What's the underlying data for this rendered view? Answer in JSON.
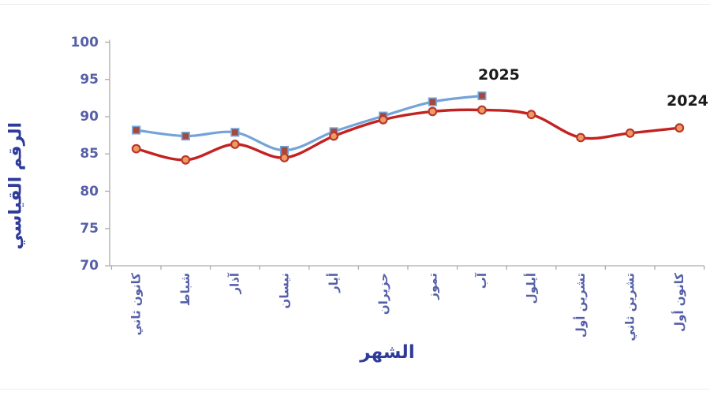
{
  "chart_data": {
    "type": "line",
    "title": "",
    "xlabel": "الشهر",
    "ylabel": "الرقم القياسي",
    "ylim": [
      70,
      100
    ],
    "yticks": [
      70,
      75,
      80,
      85,
      90,
      95,
      100
    ],
    "grid": false,
    "legend_position": "end-of-line-labels",
    "categories": [
      "كانون ثاني",
      "شباط",
      "آذار",
      "نيسان",
      "أيار",
      "حزيران",
      "تموز",
      "آب",
      "أيلول",
      "تشرين أول",
      "تشرين ثاني",
      "كانون أول"
    ],
    "series": [
      {
        "name": "2025",
        "color": "#74a3d7",
        "marker": "square",
        "marker_fill": "#a5483e",
        "values": [
          88.2,
          87.4,
          87.9,
          85.5,
          88.0,
          90.1,
          92.0,
          92.8
        ]
      },
      {
        "name": "2024",
        "color": "#c32221",
        "marker": "circle",
        "marker_fill": "#f09a62",
        "marker_stroke": "#b7372c",
        "values": [
          85.7,
          84.2,
          86.3,
          84.5,
          87.4,
          89.6,
          90.7,
          90.9,
          90.3,
          87.2,
          87.8,
          88.5
        ]
      }
    ],
    "colors": {
      "axis": "#ababab",
      "tick_labels": "#5660a8",
      "axis_titles": "#2e3b9b",
      "series_labels": "#1b1b1b"
    }
  }
}
